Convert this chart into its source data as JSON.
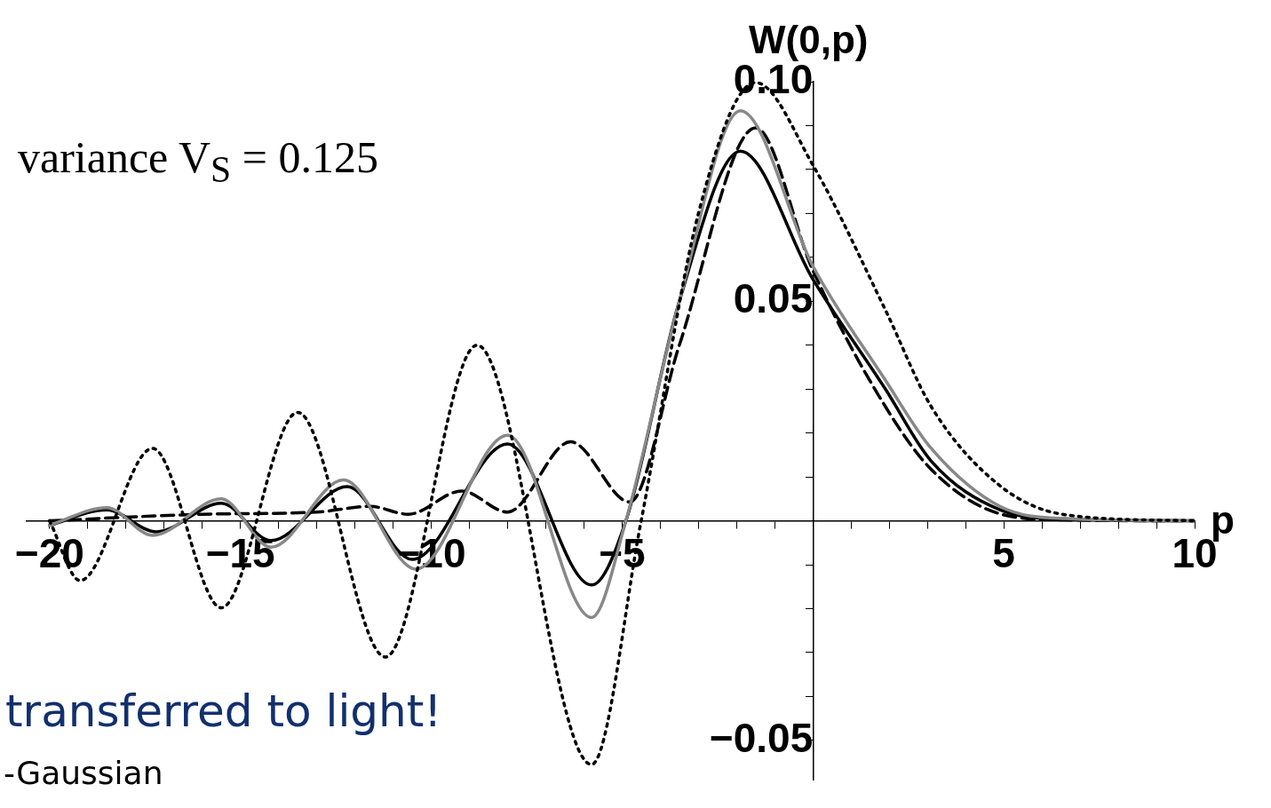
{
  "chart_data": {
    "type": "line",
    "xlabel": "p",
    "ylabel": "W(0,p)",
    "xlim": [
      -20.6,
      10
    ],
    "ylim": [
      -0.059,
      0.1
    ],
    "xticks": [
      {
        "value": -20,
        "label": "−20"
      },
      {
        "value": -19,
        "label": null
      },
      {
        "value": -18,
        "label": null
      },
      {
        "value": -17,
        "label": null
      },
      {
        "value": -16,
        "label": null
      },
      {
        "value": -15,
        "label": "−15"
      },
      {
        "value": -14,
        "label": null
      },
      {
        "value": -13,
        "label": null
      },
      {
        "value": -12,
        "label": null
      },
      {
        "value": -11,
        "label": null
      },
      {
        "value": -10,
        "label": "−10"
      },
      {
        "value": -9,
        "label": null
      },
      {
        "value": -8,
        "label": null
      },
      {
        "value": -7,
        "label": null
      },
      {
        "value": -6,
        "label": null
      },
      {
        "value": -5,
        "label": "−5"
      },
      {
        "value": -4,
        "label": null
      },
      {
        "value": -3,
        "label": null
      },
      {
        "value": -2,
        "label": null
      },
      {
        "value": -1,
        "label": null
      },
      {
        "value": 1,
        "label": null
      },
      {
        "value": 2,
        "label": null
      },
      {
        "value": 3,
        "label": null
      },
      {
        "value": 4,
        "label": null
      },
      5,
      {
        "value": 6,
        "label": null
      },
      {
        "value": 7,
        "label": null
      },
      {
        "value": 8,
        "label": null
      },
      {
        "value": 9,
        "label": null
      },
      10
    ],
    "yticks": [
      {
        "value": -0.05,
        "label": "−0.05"
      },
      {
        "value": -0.04,
        "label": null
      },
      {
        "value": -0.03,
        "label": null
      },
      {
        "value": -0.02,
        "label": null
      },
      {
        "value": -0.01,
        "label": null
      },
      {
        "value": 0.01,
        "label": null
      },
      {
        "value": 0.02,
        "label": null
      },
      {
        "value": 0.03,
        "label": null
      },
      {
        "value": 0.04,
        "label": null
      },
      0.05,
      {
        "value": 0.06,
        "label": null
      },
      {
        "value": 0.07,
        "label": null
      },
      {
        "value": 0.08,
        "label": null
      },
      {
        "value": 0.09,
        "label": null
      },
      {
        "value": 0.1,
        "label": "0.10"
      }
    ],
    "grid": false,
    "legend": false,
    "annotations": [
      "variance V$_{S}$ = 0.125",
      "transferred to light!",
      "-Gaussian"
    ],
    "series": [
      {
        "color": "#000000",
        "line_style": "dotted",
        "x": [
          -20,
          -19.2,
          -17.3,
          -15.5,
          -13.5,
          -11.2,
          -8.8,
          -5.8,
          -4.5,
          -3,
          -1.5,
          0,
          1.9,
          3.1,
          4.9,
          6.6,
          10
        ],
        "values": [
          0,
          -0.0136,
          0.0165,
          -0.0198,
          0.0247,
          -0.031,
          0.04,
          -0.0555,
          0,
          0.07,
          0.0998,
          0.081,
          0.048,
          0.026,
          0.008,
          0.0014,
          0
        ]
      },
      {
        "color": "#888888",
        "line_style": "solid",
        "x": [
          -20,
          -18.5,
          -17.3,
          -15.5,
          -14.2,
          -12.3,
          -10.4,
          -8,
          -5.8,
          -4.9,
          -3.5,
          -1.9,
          0,
          1.9,
          3.1,
          4.9,
          6.6,
          10
        ],
        "values": [
          -0.001,
          0.003,
          -0.0033,
          0.005,
          -0.006,
          0.0093,
          -0.011,
          0.0195,
          -0.022,
          0,
          0.05,
          0.0934,
          0.058,
          0.032,
          0.0165,
          0.0033,
          0.0005,
          0
        ]
      },
      {
        "color": "#000000",
        "line_style": "solid",
        "x": [
          -20,
          -18.5,
          -17.2,
          -15.5,
          -14.2,
          -12.2,
          -10.5,
          -8,
          -5.8,
          -4.9,
          -3.5,
          -1.9,
          0,
          1.9,
          3.1,
          4.9,
          6.6,
          10
        ],
        "values": [
          -0.001,
          0.0025,
          -0.0025,
          0.004,
          -0.0045,
          0.0078,
          -0.0088,
          0.0175,
          -0.0146,
          0,
          0.05,
          0.0842,
          0.055,
          0.03,
          0.0136,
          0.0025,
          0.0004,
          0
        ]
      },
      {
        "color": "#000000",
        "line_style": "dashed",
        "x": [
          -20,
          -16,
          -13,
          -11.6,
          -10.6,
          -9.2,
          -8,
          -6.35,
          -4.8,
          -3.5,
          -1.5,
          0,
          1.9,
          3.1,
          4.9,
          6.6,
          10
        ],
        "values": [
          0,
          0.0015,
          0.002,
          0.0033,
          0.0015,
          0.0068,
          0.002,
          0.018,
          0.0043,
          0.04,
          0.0895,
          0.057,
          0.026,
          0.0117,
          0.0016,
          0.0002,
          0
        ]
      }
    ]
  }
}
